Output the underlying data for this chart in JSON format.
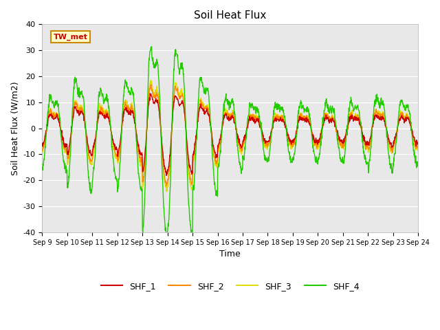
{
  "title": "Soil Heat Flux",
  "xlabel": "Time",
  "ylabel": "Soil Heat Flux (W/m2)",
  "ylim": [
    -40,
    40
  ],
  "xlim": [
    0,
    15
  ],
  "colors": {
    "SHF_1": "#cc0000",
    "SHF_2": "#ff8800",
    "SHF_3": "#dddd00",
    "SHF_4": "#22cc00"
  },
  "linewidth": 1.0,
  "background_color": "#e8e8e8",
  "xtick_labels": [
    "Sep 9",
    "Sep 10",
    "Sep 11",
    "Sep 12",
    "Sep 13",
    "Sep 14",
    "Sep 15",
    "Sep 16",
    "Sep 17",
    "Sep 18",
    "Sep 19",
    "Sep 20",
    "Sep 21",
    "Sep 22",
    "Sep 23",
    "Sep 24"
  ],
  "ytick_values": [
    -40,
    -30,
    -20,
    -10,
    0,
    10,
    20,
    30,
    40
  ],
  "annotation_text": "TW_met",
  "grid_color": "#ffffff",
  "fig_bg": "#ffffff"
}
